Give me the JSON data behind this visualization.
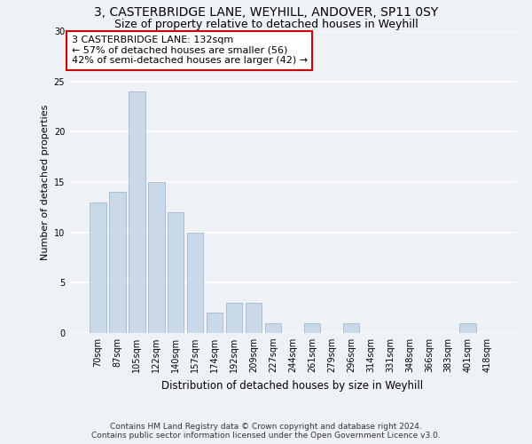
{
  "title1": "3, CASTERBRIDGE LANE, WEYHILL, ANDOVER, SP11 0SY",
  "title2": "Size of property relative to detached houses in Weyhill",
  "xlabel": "Distribution of detached houses by size in Weyhill",
  "ylabel": "Number of detached properties",
  "categories": [
    "70sqm",
    "87sqm",
    "105sqm",
    "122sqm",
    "140sqm",
    "157sqm",
    "174sqm",
    "192sqm",
    "209sqm",
    "227sqm",
    "244sqm",
    "261sqm",
    "279sqm",
    "296sqm",
    "314sqm",
    "331sqm",
    "348sqm",
    "366sqm",
    "383sqm",
    "401sqm",
    "418sqm"
  ],
  "values": [
    13,
    14,
    24,
    15,
    12,
    10,
    2,
    3,
    3,
    1,
    0,
    1,
    0,
    1,
    0,
    0,
    0,
    0,
    0,
    1,
    0
  ],
  "bar_color": "#c9d9e9",
  "bar_edgecolor": "#9ab0c8",
  "annotation_text": "3 CASTERBRIDGE LANE: 132sqm\n← 57% of detached houses are smaller (56)\n42% of semi-detached houses are larger (42) →",
  "annotation_box_facecolor": "#ffffff",
  "annotation_box_edgecolor": "#cc0000",
  "ylim": [
    0,
    30
  ],
  "yticks": [
    0,
    5,
    10,
    15,
    20,
    25,
    30
  ],
  "footer": "Contains HM Land Registry data © Crown copyright and database right 2024.\nContains public sector information licensed under the Open Government Licence v3.0.",
  "background_color": "#eef2f7",
  "grid_color": "#ffffff",
  "title1_fontsize": 10,
  "title2_fontsize": 9,
  "xlabel_fontsize": 8.5,
  "ylabel_fontsize": 8,
  "tick_fontsize": 7,
  "annotation_fontsize": 8,
  "footer_fontsize": 6.5
}
